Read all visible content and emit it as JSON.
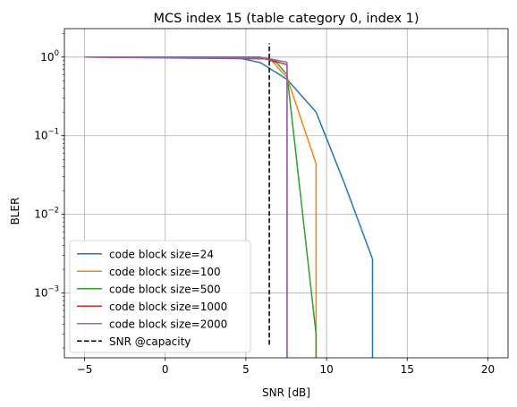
{
  "chart_data": {
    "type": "line",
    "title": "MCS index 15 (table category 0, index 1)",
    "xlabel": "SNR [dB]",
    "ylabel": "BLER",
    "xscale": "linear",
    "yscale": "log",
    "xlim": [
      -6.25,
      21.25
    ],
    "ylim": [
      0.00015,
      2.3
    ],
    "xticks": [
      -5,
      0,
      5,
      10,
      15,
      20
    ],
    "xtick_labels": [
      "−5",
      "0",
      "5",
      "10",
      "15",
      "20"
    ],
    "yticks": [
      0.001,
      0.01,
      0.1,
      1
    ],
    "ytick_labels": [
      {
        "base": "10",
        "exp": "−3"
      },
      {
        "base": "10",
        "exp": "−2"
      },
      {
        "base": "10",
        "exp": "−1"
      },
      {
        "base": "10",
        "exp": "0"
      }
    ],
    "grid": true,
    "legend_position": "lower-left",
    "series": [
      {
        "name": "code block size=24",
        "color": "#1f77b4",
        "style": "solid",
        "x": [
          -5,
          4.5,
          5.9,
          7.55,
          9.35,
          11.1,
          12.85,
          12.85
        ],
        "y": [
          1.0,
          0.98,
          0.85,
          0.52,
          0.2,
          0.025,
          0.0027,
          0.00015
        ]
      },
      {
        "name": "code block size=100",
        "color": "#ff7f0e",
        "style": "solid",
        "x": [
          -5,
          5.9,
          6.6,
          7.55,
          9.35,
          9.35
        ],
        "y": [
          1.0,
          0.99,
          0.9,
          0.55,
          0.044,
          0.00015
        ]
      },
      {
        "name": "code block size=500",
        "color": "#2ca02c",
        "style": "solid",
        "x": [
          -5,
          5.9,
          6.9,
          7.55,
          9.35,
          9.35
        ],
        "y": [
          1.0,
          1.0,
          0.85,
          0.6,
          0.0003,
          0.00015
        ]
      },
      {
        "name": "code block size=1000",
        "color": "#d62728",
        "style": "solid",
        "x": [
          -5,
          6.3,
          7.55,
          7.55
        ],
        "y": [
          1.0,
          0.95,
          0.8,
          0.00015
        ]
      },
      {
        "name": "code block size=2000",
        "color": "#9467bd",
        "style": "solid",
        "x": [
          -5,
          6.3,
          7.55,
          7.55
        ],
        "y": [
          1.0,
          0.97,
          0.86,
          0.00015
        ]
      },
      {
        "name": "SNR @capacity",
        "color": "#000000",
        "style": "dashed",
        "x": [
          6.45,
          6.45
        ],
        "y": [
          0.00022,
          1.5
        ]
      }
    ]
  }
}
